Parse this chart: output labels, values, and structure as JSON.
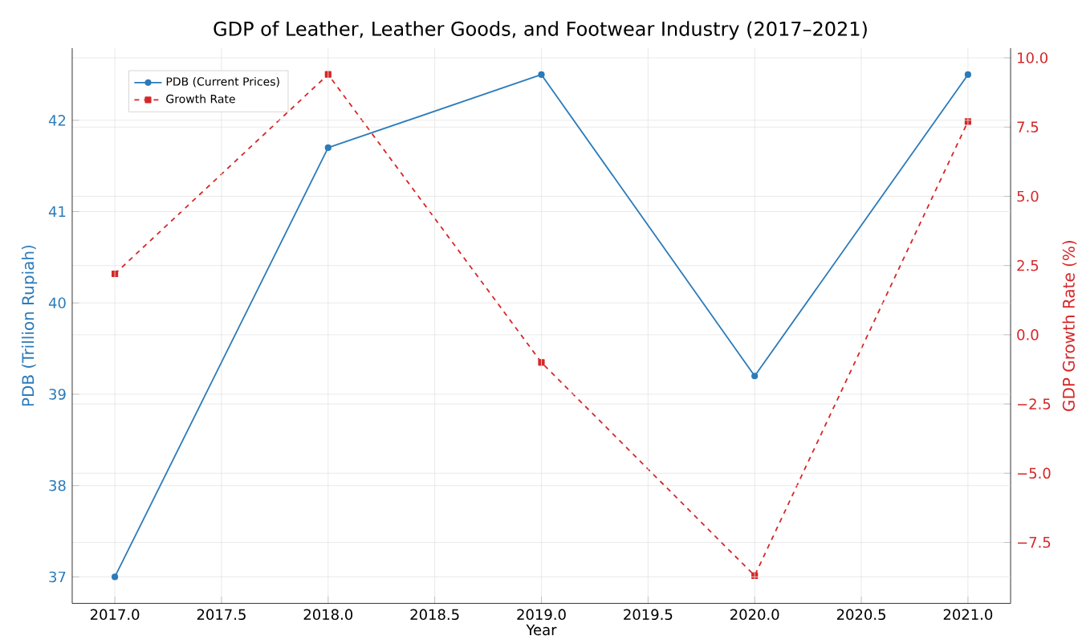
{
  "chart_data": {
    "type": "line",
    "title": "GDP of Leather, Leather Goods, and Footwear Industry (2017–2021)",
    "xlabel": "Year",
    "ylabel": "PDB (Trillion Rupiah)",
    "y2label": "GDP Growth Rate (%)",
    "x": [
      2017,
      2018,
      2019,
      2020,
      2021
    ],
    "series": [
      {
        "name": "PDB (Current Prices)",
        "color": "#2b7bba",
        "values": [
          37.0,
          41.7,
          42.5,
          39.2,
          42.5
        ],
        "marker": "circle",
        "line_style": "solid"
      },
      {
        "name": "Growth Rate",
        "color": "#d62728",
        "values": [
          2.2,
          9.4,
          -1.0,
          -8.7,
          7.7
        ],
        "axis": "y2",
        "marker": "square",
        "line_style": "dashed"
      }
    ],
    "xlim": [
      2016.8,
      2021.2
    ],
    "xticks": [
      {
        "value": 2017,
        "label": "2017.0"
      },
      {
        "value": 2017.5,
        "label": "2017.5"
      },
      {
        "value": 2018,
        "label": "2018.0"
      },
      {
        "value": 2018.5,
        "label": "2018.5"
      },
      {
        "value": 2019,
        "label": "2019.0"
      },
      {
        "value": 2019.5,
        "label": "2019.5"
      },
      {
        "value": 2020,
        "label": "2020.0"
      },
      {
        "value": 2020.5,
        "label": "2020.5"
      },
      {
        "value": 2021,
        "label": "2021.0"
      }
    ],
    "ylim": [
      36.71,
      42.79
    ],
    "yticks": [
      37,
      38,
      39,
      40,
      41,
      42
    ],
    "y2lim": [
      -9.7,
      10.35
    ],
    "y2ticks": [
      {
        "value": -7.5,
        "label": "−7.5"
      },
      {
        "value": -5,
        "label": "−5.0"
      },
      {
        "value": -2.5,
        "label": "−2.5"
      },
      {
        "value": 0,
        "label": "0.0"
      },
      {
        "value": 2.5,
        "label": "2.5"
      },
      {
        "value": 5,
        "label": "5.0"
      },
      {
        "value": 7.5,
        "label": "7.5"
      },
      {
        "value": 10,
        "label": "10.0"
      }
    ],
    "grid": true,
    "legend": "top left"
  }
}
